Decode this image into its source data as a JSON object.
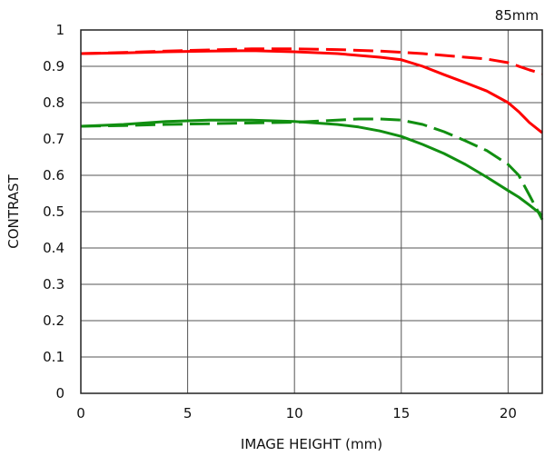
{
  "chart_data": {
    "type": "line",
    "annotation": "85mm",
    "xlabel": "IMAGE HEIGHT (mm)",
    "ylabel": "CONTRAST",
    "xlim": [
      0,
      21.6
    ],
    "ylim": [
      0,
      1
    ],
    "x_ticks": [
      0,
      5,
      10,
      15,
      20
    ],
    "y_ticks": [
      0,
      0.1,
      0.2,
      0.3,
      0.4,
      0.5,
      0.6,
      0.7,
      0.8,
      0.9,
      1
    ],
    "x_tick_labels": [
      "0",
      "5",
      "10",
      "15",
      "20"
    ],
    "y_tick_labels": [
      "0",
      "0.1",
      "0.2",
      "0.3",
      "0.4",
      "0.5",
      "0.6",
      "0.7",
      "0.8",
      "0.9",
      "1"
    ],
    "grid": true,
    "series": [
      {
        "color": "#ff0000",
        "dash": "solid",
        "points": [
          [
            0,
            0.935
          ],
          [
            2,
            0.937
          ],
          [
            4,
            0.94
          ],
          [
            6,
            0.942
          ],
          [
            8,
            0.943
          ],
          [
            10,
            0.94
          ],
          [
            12,
            0.935
          ],
          [
            14,
            0.925
          ],
          [
            15,
            0.918
          ],
          [
            16,
            0.9
          ],
          [
            17,
            0.877
          ],
          [
            18,
            0.855
          ],
          [
            19,
            0.832
          ],
          [
            20,
            0.8
          ],
          [
            20.5,
            0.775
          ],
          [
            21,
            0.745
          ],
          [
            21.6,
            0.717
          ]
        ]
      },
      {
        "color": "#ff0000",
        "dash": "dashed",
        "points": [
          [
            0,
            0.935
          ],
          [
            2,
            0.938
          ],
          [
            4,
            0.942
          ],
          [
            6,
            0.945
          ],
          [
            8,
            0.948
          ],
          [
            10,
            0.948
          ],
          [
            12,
            0.946
          ],
          [
            14,
            0.942
          ],
          [
            16,
            0.935
          ],
          [
            18,
            0.925
          ],
          [
            19,
            0.92
          ],
          [
            20,
            0.91
          ],
          [
            21,
            0.89
          ],
          [
            21.6,
            0.88
          ]
        ]
      },
      {
        "color": "#118f11",
        "dash": "solid",
        "points": [
          [
            0,
            0.735
          ],
          [
            2,
            0.74
          ],
          [
            4,
            0.748
          ],
          [
            6,
            0.752
          ],
          [
            8,
            0.752
          ],
          [
            10,
            0.748
          ],
          [
            12,
            0.74
          ],
          [
            13,
            0.733
          ],
          [
            14,
            0.722
          ],
          [
            15,
            0.707
          ],
          [
            16,
            0.685
          ],
          [
            17,
            0.66
          ],
          [
            18,
            0.63
          ],
          [
            19,
            0.595
          ],
          [
            20,
            0.558
          ],
          [
            20.5,
            0.54
          ],
          [
            21,
            0.518
          ],
          [
            21.6,
            0.49
          ]
        ]
      },
      {
        "color": "#118f11",
        "dash": "dashed",
        "points": [
          [
            0,
            0.735
          ],
          [
            2,
            0.737
          ],
          [
            4,
            0.74
          ],
          [
            6,
            0.742
          ],
          [
            8,
            0.744
          ],
          [
            10,
            0.746
          ],
          [
            12,
            0.752
          ],
          [
            13,
            0.755
          ],
          [
            14,
            0.755
          ],
          [
            15,
            0.752
          ],
          [
            16,
            0.74
          ],
          [
            17,
            0.72
          ],
          [
            18,
            0.695
          ],
          [
            19,
            0.668
          ],
          [
            20,
            0.63
          ],
          [
            20.5,
            0.6
          ],
          [
            21,
            0.545
          ],
          [
            21.6,
            0.478
          ]
        ]
      }
    ]
  }
}
